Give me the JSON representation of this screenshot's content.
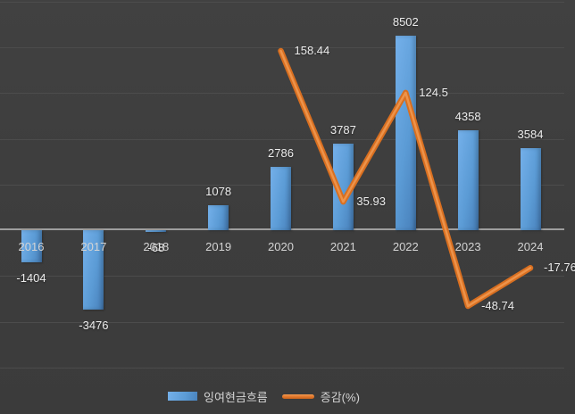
{
  "chart_data": {
    "type": "combo-bar-line",
    "title": "",
    "categories": [
      "2016",
      "2017",
      "2018",
      "2019",
      "2020",
      "2021",
      "2022",
      "2023",
      "2024"
    ],
    "series": [
      {
        "name": "잉여현금흐름",
        "type": "bar",
        "axis": "primary",
        "color": "#5b9bd5",
        "values": [
          -1404,
          -3476,
          -68,
          1078,
          2786,
          3787,
          8502,
          4358,
          3584
        ],
        "labels": [
          "-1404",
          "-3476",
          "-68",
          "1078",
          "2786",
          "3787",
          "8502",
          "4358",
          "3584"
        ]
      },
      {
        "name": "증감(%)",
        "type": "line",
        "axis": "secondary",
        "color": "#e0762a",
        "values": [
          null,
          null,
          null,
          null,
          158.44,
          35.93,
          124.5,
          -48.74,
          -17.76
        ],
        "labels": [
          "",
          "",
          "",
          "",
          "158.44",
          "35.93",
          "124.5",
          "-48.74",
          "-17.76"
        ]
      }
    ],
    "primary_axis": {
      "min": -6000,
      "max": 10000,
      "gridline_step": 2000,
      "labels_visible": false
    },
    "secondary_axis": {
      "labels_visible": false
    },
    "grid": true,
    "legend_position": "bottom-center",
    "background": "dark"
  },
  "legend": {
    "bar_label": "잉여현금흐름",
    "line_label": "증감(%)"
  },
  "colors": {
    "background": "#3d3d3d",
    "gridline": "#4c4c4c",
    "axis_line": "#9e9e9e",
    "bar_fill": "#5b9bd5",
    "line_stroke": "#e0762a",
    "data_label": "#ececec",
    "axis_label": "#d4d4d4"
  }
}
